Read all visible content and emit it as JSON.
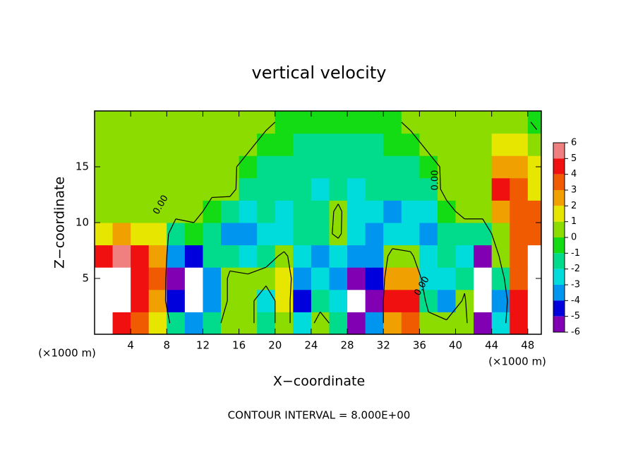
{
  "chart_data": {
    "type": "heatmap",
    "title": "vertical velocity",
    "x_label": "X−coordinate",
    "y_label": "Z−coordinate",
    "x_unit": "(×1000 m)",
    "y_unit": "(×1000 m)",
    "annotation": "CONTOUR INTERVAL = 8.000E+00",
    "xlim": [
      0,
      49.5
    ],
    "ylim": [
      0,
      20
    ],
    "xticks": [
      4,
      8,
      12,
      16,
      20,
      24,
      28,
      32,
      36,
      40,
      44,
      48
    ],
    "yticks": [
      5,
      10,
      15
    ],
    "x": [
      1,
      3,
      5,
      7,
      9,
      11,
      13,
      15,
      17,
      19,
      21,
      23,
      25,
      27,
      29,
      31,
      33,
      35,
      37,
      39,
      41,
      43,
      45,
      47,
      49
    ],
    "y": [
      1,
      3,
      5,
      7,
      9,
      11,
      13,
      15,
      17,
      19
    ],
    "z": [
      [
        7,
        5,
        4,
        2,
        -1,
        -3,
        -1,
        1,
        0.5,
        -1,
        1,
        -2,
        1,
        -1,
        -5,
        -3,
        3,
        4,
        1,
        0.5,
        1,
        -6,
        -2,
        5,
        7
      ],
      [
        7,
        7,
        5,
        3,
        -4,
        -7,
        -3,
        0.5,
        1,
        -2,
        2,
        -4,
        -1,
        -2,
        -7,
        -5,
        5,
        5,
        -1,
        -3,
        0.5,
        -8,
        -3,
        5,
        7
      ],
      [
        7,
        7,
        5,
        4,
        -5,
        -7,
        -3,
        0.5,
        0.5,
        1,
        2,
        -3,
        -2,
        -3,
        -6,
        -4,
        3,
        3,
        -2,
        -2,
        -1,
        -7,
        -1,
        4,
        7
      ],
      [
        5,
        6,
        5,
        3,
        -3,
        -4,
        -1,
        -1,
        -2,
        -1,
        0.5,
        -2,
        -3,
        -2,
        -3,
        -3,
        1,
        0.5,
        -2.5,
        -1,
        -2,
        -5,
        0.5,
        4,
        7
      ],
      [
        2,
        3,
        2,
        1.5,
        -1,
        -0.5,
        -1,
        -3,
        -3,
        -2,
        -2,
        -1,
        -1,
        0.5,
        -2.5,
        -3,
        -2,
        -2,
        -3,
        -1,
        -1,
        -1,
        1,
        4,
        4
      ],
      [
        1,
        1,
        1,
        0.5,
        0.5,
        0.5,
        -0.5,
        -1,
        -2,
        -1.5,
        -2,
        -1,
        -1.5,
        0.5,
        -2,
        -2,
        -3,
        -2,
        -2,
        -0.5,
        0.5,
        0.5,
        3,
        4,
        4
      ],
      [
        0.5,
        0.5,
        0.5,
        0.5,
        0.5,
        0.3,
        0.3,
        0.5,
        -1,
        -1,
        -1.5,
        -1.5,
        -2,
        -1,
        -2,
        -1.5,
        -1.5,
        -1,
        -1,
        0.5,
        1,
        1,
        5,
        4,
        2
      ],
      [
        0.5,
        0.5,
        0.5,
        0.5,
        0.5,
        0.5,
        0.5,
        0.3,
        -0.5,
        -1,
        -1,
        -1.5,
        -1.5,
        -1,
        -1.5,
        -1.5,
        -1,
        -1,
        -0.5,
        0.3,
        0.5,
        1,
        3,
        3,
        1.5
      ],
      [
        0.5,
        0.5,
        0.5,
        0.5,
        0.5,
        0.5,
        0.5,
        0.5,
        0.3,
        -0.5,
        -0.5,
        -1,
        -1,
        -1,
        -1,
        -1,
        -0.5,
        -0.5,
        0.3,
        0.5,
        0.5,
        0.5,
        1.5,
        1.5,
        1
      ],
      [
        0.5,
        0.5,
        0.5,
        0.5,
        0.5,
        0.5,
        0.5,
        0.5,
        0.5,
        0.3,
        -0.3,
        -0.5,
        -0.5,
        -0.5,
        -0.5,
        -0.5,
        -0.3,
        0.3,
        0.5,
        0.5,
        0.5,
        0.5,
        1,
        1,
        -0.5
      ]
    ],
    "colorbar_ticks": [
      6,
      5,
      4,
      3,
      2,
      1,
      0,
      -1,
      -2,
      -3,
      -4,
      -5,
      -6
    ],
    "colors": [
      "#f08080",
      "#f01010",
      "#f05a00",
      "#f0a000",
      "#e6e600",
      "#8cdc00",
      "#14dc14",
      "#00dc8c",
      "#00dcdc",
      "#0096f0",
      "#0000dc",
      "#8200b4"
    ],
    "out_of_range_color": "#ffffff",
    "contour_levels": [
      {
        "value": 0,
        "label": "0.00"
      }
    ]
  }
}
